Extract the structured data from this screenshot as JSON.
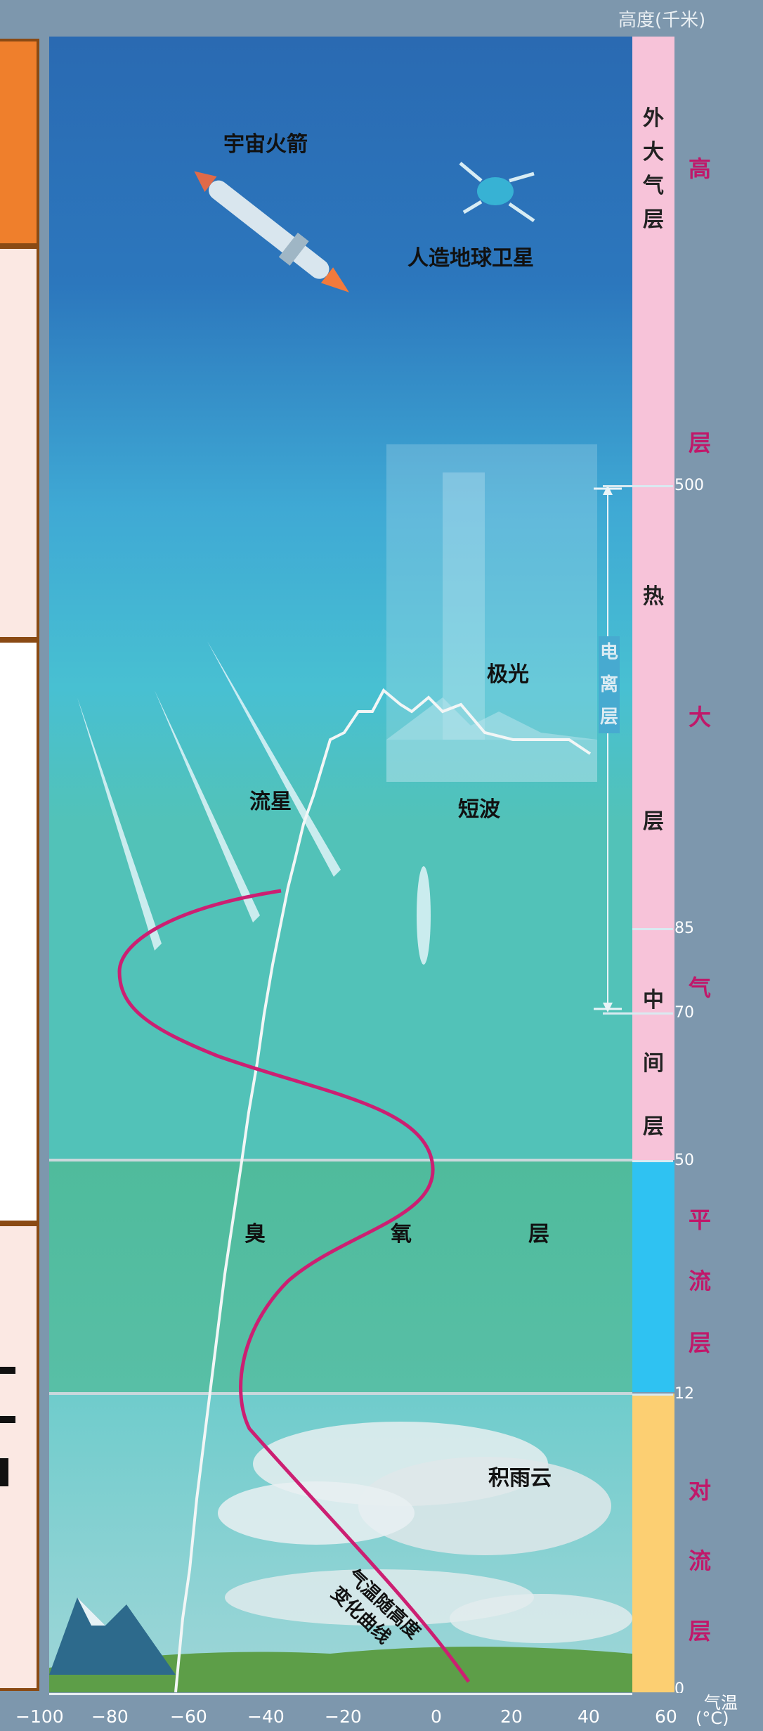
{
  "altitude_label": "高度(千米)",
  "temperature_label": "气温",
  "temperature_unit": "(°C)",
  "layers": [
    {
      "id": "exosphere",
      "chars": [
        "外",
        "大",
        "气",
        "层"
      ]
    },
    {
      "id": "thermosphere",
      "chars": [
        "热",
        "层"
      ]
    },
    {
      "id": "mesosphere",
      "chars": [
        "中",
        "间",
        "层"
      ]
    }
  ],
  "ionosphere_chars": [
    "电",
    "离",
    "层"
  ],
  "right_labels": {
    "upper": [
      "高",
      "层",
      "大",
      "气"
    ],
    "stratosphere": [
      "平",
      "流",
      "层"
    ],
    "troposphere": [
      "对",
      "流",
      "层"
    ]
  },
  "altitude_ticks": [
    "500",
    "85",
    "70",
    "50",
    "12",
    "0"
  ],
  "temperature_ticks": [
    "−100",
    "−80",
    "−60",
    "−40",
    "−20",
    "0",
    "20",
    "40",
    "60"
  ],
  "captions": {
    "rocket": "宇宙火箭",
    "satellite": "人造地球卫星",
    "aurora": "极光",
    "meteor": "流星",
    "shortwave": "短波",
    "ozone": [
      "臭",
      "氧",
      "层"
    ],
    "cloud": "积雨云",
    "curve_label": [
      "气温随高度",
      "变化曲线"
    ]
  },
  "colors": {
    "upper_band": "#f7c3d9",
    "stratosphere_band": "#2fc2f2",
    "troposphere_band": "#fccf72",
    "curve": "#cc1f72",
    "label_red": "#c0186a"
  }
}
